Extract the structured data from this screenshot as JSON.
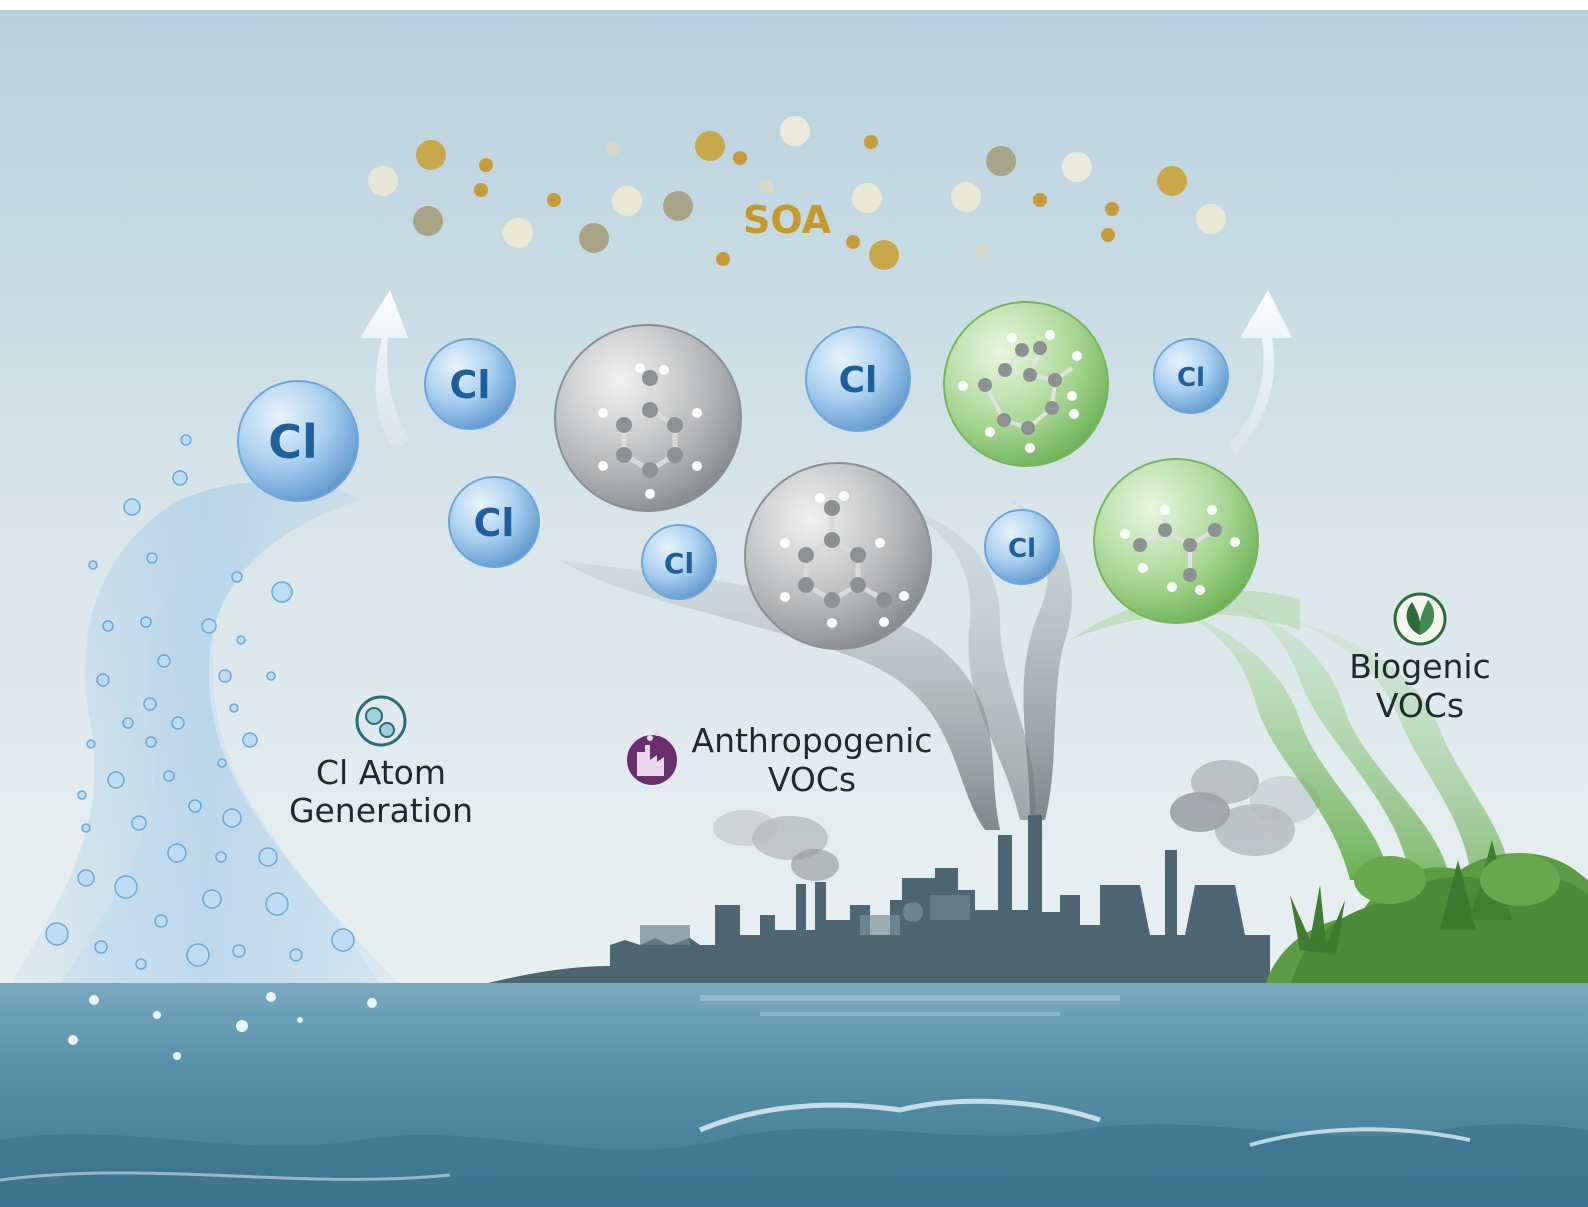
{
  "labels": {
    "soa": "SOA",
    "cl_generation": [
      "Cl Atom",
      "Generation"
    ],
    "anthropogenic": [
      "Anthropogenic",
      "VOCs"
    ],
    "biogenic": [
      "Biogenic",
      "VOCs"
    ]
  },
  "cl_atom_symbol": "Cl",
  "icons": {
    "cl_generation": "bubbles-icon",
    "anthropogenic": "factory-icon",
    "biogenic": "leaf-icon"
  },
  "colors": {
    "sky_top": "#b7d1de",
    "sky_bottom": "#e6eef1",
    "sea": "#5d95ae",
    "sea_deep": "#3f7891",
    "cl_sphere": "#8fbde4",
    "cl_text": "#1f5f9c",
    "anthropogenic_sphere": "#a9abad",
    "biogenic_sphere": "#9fd18c",
    "soa_text": "#c49a2c",
    "skyline": "#4c6470",
    "vegetation": "#5f9c45",
    "anthropogenic_icon": "#6a2e6f",
    "biogenic_icon": "#2f6a3d",
    "cl_icon": "#2a6b78"
  }
}
